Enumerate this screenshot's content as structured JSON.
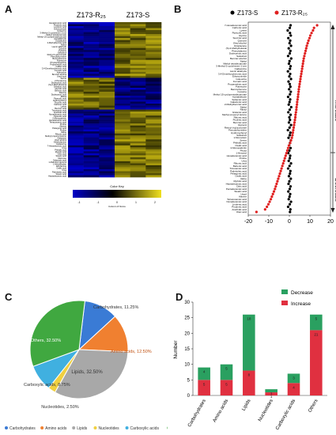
{
  "panels": {
    "a": "A",
    "b": "B",
    "c": "C",
    "d": "D"
  },
  "colors": {
    "heat_low": "#00007a",
    "heat_mid": "#000000",
    "heat_high": "#e0d020",
    "z173s": "#000000",
    "z173r": "#e02020",
    "carb": "#3a7bd5",
    "amino": "#f08030",
    "lipid": "#a8a8a8",
    "nucleo": "#f0d040",
    "carbox": "#40b0e0",
    "other": "#40a840",
    "decrease": "#2aa060",
    "increase": "#e03040"
  },
  "chart_data": [
    {
      "type": "heatmap",
      "column_groups": [
        "Z173-R₂₅",
        "Z173-S"
      ],
      "color_key_title": "Color Key",
      "color_key_ticks": [
        "-1",
        "-1",
        "0",
        "1",
        "2"
      ],
      "color_key_sub": "Column Z-Score",
      "rows": [
        "Hexadecanoic acid",
        "Propionic acid",
        "Linolenic acid",
        "Ethosuximide",
        "Isoleucine",
        "3-Methyl-2-cyclohexen-1-one",
        "Methyl tetradecanoate",
        "Methyl 15-cyclopentadecanoate",
        "Acetaldehyde",
        "Octadecane",
        "2-Methylbenzoic acid",
        "Maltol",
        "Lauric aldehyde",
        "Quinone",
        "Cytosine",
        "Salsolinol",
        "Retinyl b-glucuronide",
        "Pseudothymidine",
        "Benzophenone",
        "Putrescine",
        "Phytosphingosine",
        "Propanedioic acid",
        "Caffeic acid",
        "3,4-Dimethoxybenzoic acid",
        "Fumaric acid",
        "Adenosine",
        "Benzoic alcohol",
        "Uracil acid",
        "Serine",
        "2-Pentanone",
        "Dodecanoic acid",
        "(S)-2-Methylbutanal",
        "Sebacoic acid",
        "Glycolic acid",
        "Benzoic acid",
        "Flavone",
        "Dodecanoic acid",
        "Ribitol",
        "Pipecolic acid",
        "Hydroxyphenyl",
        "Succinic acid",
        "Carbonic acid",
        "Lysine",
        "Benzoic acid",
        "Tricosanoic acid",
        "Arachidic acid",
        "Nonadecanoic acid",
        "Pipecolic acid",
        "2-Monopalmitin",
        "Hexadecanoic acid",
        "Tetracosanoic acid",
        "Proline",
        "Alanine",
        "Pelargonic acid",
        "Proline",
        "Valine",
        "Ribonic acid",
        "Methyl propenyl ketone",
        "Galactose",
        "Oleyl alcohol",
        "Ethanolamine",
        "Cadaverine",
        "7-Hexadecenoic acid",
        "Urea",
        "Phthalic acid",
        "Myristic acid",
        "Oleic acid",
        "Stearic acid",
        "Mannose",
        "Galactaric acid",
        "1-Palmitoyl glycerol",
        "1-Monolinolein",
        "Ethylamine",
        "Oxalic acid",
        "Urea",
        "Palmitoleic acid",
        "Stearic acid",
        "Heptadecanoic acid"
      ]
    },
    {
      "type": "scatter",
      "series": [
        {
          "name": "Z173-S"
        },
        {
          "name": "Z173-R₂₅"
        }
      ],
      "categories": [
        "7-Hexadecenoic acid",
        "Carbonic acid",
        "Lysine",
        "Pipecolic acid",
        "Glycine",
        "Succinic acid",
        "Quinone",
        "Oleyl alcohol",
        "Octadecane",
        "(S)-2-Methylbutanal",
        "Phenylalanine",
        "Dodecanoic acid",
        "Salsolinol",
        "Benzoic alcohol",
        "Maltol",
        "Methyl tetradecanoate",
        "3-Methyl-2-cyclohexen-1-one",
        "Cadaverine",
        "Lauric aldehyde",
        "3,4-Dimethoxybenzoic acid",
        "Ethosuximide",
        "Isoleucine",
        "Fumaric acid",
        "Propanedioic acid",
        "Putrescine",
        "Benzophenone",
        "Cytosine",
        "Methyl 15-cyclopentadecanoate",
        "Acetaldehyde",
        "Sebacoic acid",
        "Galactonic acid",
        "2-Methylbenzoic acid",
        "Maltol",
        "Ribitol",
        "Glutamic acid",
        "Methyl propenyl ketone",
        "Ribonic acid",
        "Picolinic acid",
        "Benzoic acid",
        "Glycerol",
        "Retinyl b-glucuronide",
        "Pseudothymidine",
        "Hydroxyphenyl",
        "Salsolinol",
        "1-Monoolein",
        "Serine",
        "Phthalic acid",
        "Oxalic acid",
        "2-Monopalmitin",
        "Phytol",
        "1-Hexanol",
        "Hexadecanoic acid",
        "Proline",
        "Urea",
        "Ribonic acid",
        "Behenic acid",
        "Tricosanoic acid",
        "Palmitoleic acid",
        "Pelargonic acid",
        "Oxalic acid",
        "Valine",
        "Myristic acid",
        "Heptadecanoic acid",
        "Citric acid",
        "Pentadecanoic acid",
        "Stearic acid",
        "Uracil",
        "Alanine",
        "Tetracosanoic acid",
        "Nonadecanoic acid",
        "Linolenic acid",
        "Propionic acid",
        "Arachidic acid",
        "Oleic acid"
      ],
      "values_s": [
        0.6,
        0.2,
        -0.8,
        0.3,
        0.7,
        -0.5,
        0.4,
        0.1,
        0.8,
        -0.3,
        0.5,
        0.2,
        -0.6,
        0.9,
        0.1,
        -0.2,
        0.6,
        0.3,
        -0.7,
        0.4,
        0.0,
        0.8,
        -0.4,
        0.2,
        0.5,
        -0.1,
        0.7,
        0.3,
        -0.6,
        0.4,
        0.1,
        -0.3,
        0.9,
        0.2,
        -0.5,
        0.6,
        0.0,
        0.3,
        -0.2,
        0.8,
        0.1,
        -0.7,
        0.5,
        0.2,
        -0.4,
        0.7,
        0.3,
        -0.1,
        0.6,
        0.0,
        -0.5,
        0.4,
        0.2,
        -0.3,
        0.8,
        0.1,
        -0.6,
        0.5,
        0.3,
        -0.2,
        0.7,
        0.0,
        -0.4,
        0.6,
        0.2,
        -0.5,
        0.4,
        0.1,
        -0.3,
        0.8,
        0.2,
        -0.6,
        0.5,
        0.3
      ],
      "values_r": [
        13.5,
        12.0,
        11.5,
        10.8,
        10.2,
        9.8,
        9.3,
        8.9,
        8.5,
        8.2,
        7.9,
        7.6,
        7.3,
        7.0,
        6.8,
        6.6,
        6.4,
        6.2,
        6.0,
        5.8,
        5.6,
        5.4,
        5.2,
        5.0,
        4.8,
        4.6,
        4.5,
        4.3,
        4.2,
        4.0,
        3.8,
        3.7,
        3.5,
        3.4,
        3.2,
        3.0,
        2.9,
        2.7,
        2.5,
        2.3,
        2.1,
        1.9,
        1.7,
        1.5,
        1.2,
        0.8,
        0.4,
        -0.2,
        -0.6,
        -1.0,
        -1.4,
        -1.8,
        -2.2,
        -2.6,
        -3.0,
        -3.4,
        -3.8,
        -4.2,
        -4.6,
        -5.0,
        -5.4,
        -5.8,
        -6.2,
        -6.6,
        -7.0,
        -7.5,
        -8.0,
        -8.5,
        -9.0,
        -9.6,
        -10.2,
        -10.9,
        -11.8,
        -16.0
      ],
      "xlim": [
        -20,
        20
      ],
      "xticks": [
        "-20",
        "-10",
        "0",
        "10",
        "20"
      ],
      "annotations": {
        "increase": "Increase",
        "decrease": "Decrease"
      }
    },
    {
      "type": "pie",
      "slices": [
        {
          "name": "Carbohydrates",
          "value": 11.25
        },
        {
          "name": "Amino acids",
          "value": 12.5
        },
        {
          "name": "Lipids",
          "value": 32.5
        },
        {
          "name": "Nucleotides",
          "value": 2.5
        },
        {
          "name": "Carboxylic acids",
          "value": 8.75
        },
        {
          "name": "Others",
          "value": 32.5
        }
      ],
      "slice_labels": [
        "Carbohydrates, 11.25%",
        "Amino acids, 12.50%",
        "Lipids, 32.50%",
        "Nucleotides, 2.50%",
        "Carboxylic acids, 8.75%",
        "Others, 32.50%"
      ],
      "legend": [
        "Carbohydrates",
        "Amino acids",
        "Lipids",
        "Nucleotides",
        "Carboxylic acids",
        "Others"
      ]
    },
    {
      "type": "bar",
      "categories": [
        "Carbohydrates",
        "Amino acids",
        "Lipids",
        "Nucleotides",
        "Carboxylic acids",
        "Others"
      ],
      "series": [
        {
          "name": "Decrease",
          "values": [
            4,
            5,
            18,
            1,
            3,
            5
          ]
        },
        {
          "name": "Increase",
          "values": [
            5,
            5,
            8,
            1,
            4,
            21
          ]
        }
      ],
      "ylabel": "Number",
      "ylim": [
        0,
        30
      ],
      "yticks": [
        "0",
        "5",
        "10",
        "15",
        "20",
        "25",
        "30"
      ],
      "bar_labels": [
        [
          "4",
          "5"
        ],
        [
          "5",
          "5"
        ],
        [
          "18",
          "8"
        ],
        [
          "1",
          "1"
        ],
        [
          "3",
          "4"
        ],
        [
          "5",
          "21"
        ]
      ]
    }
  ]
}
